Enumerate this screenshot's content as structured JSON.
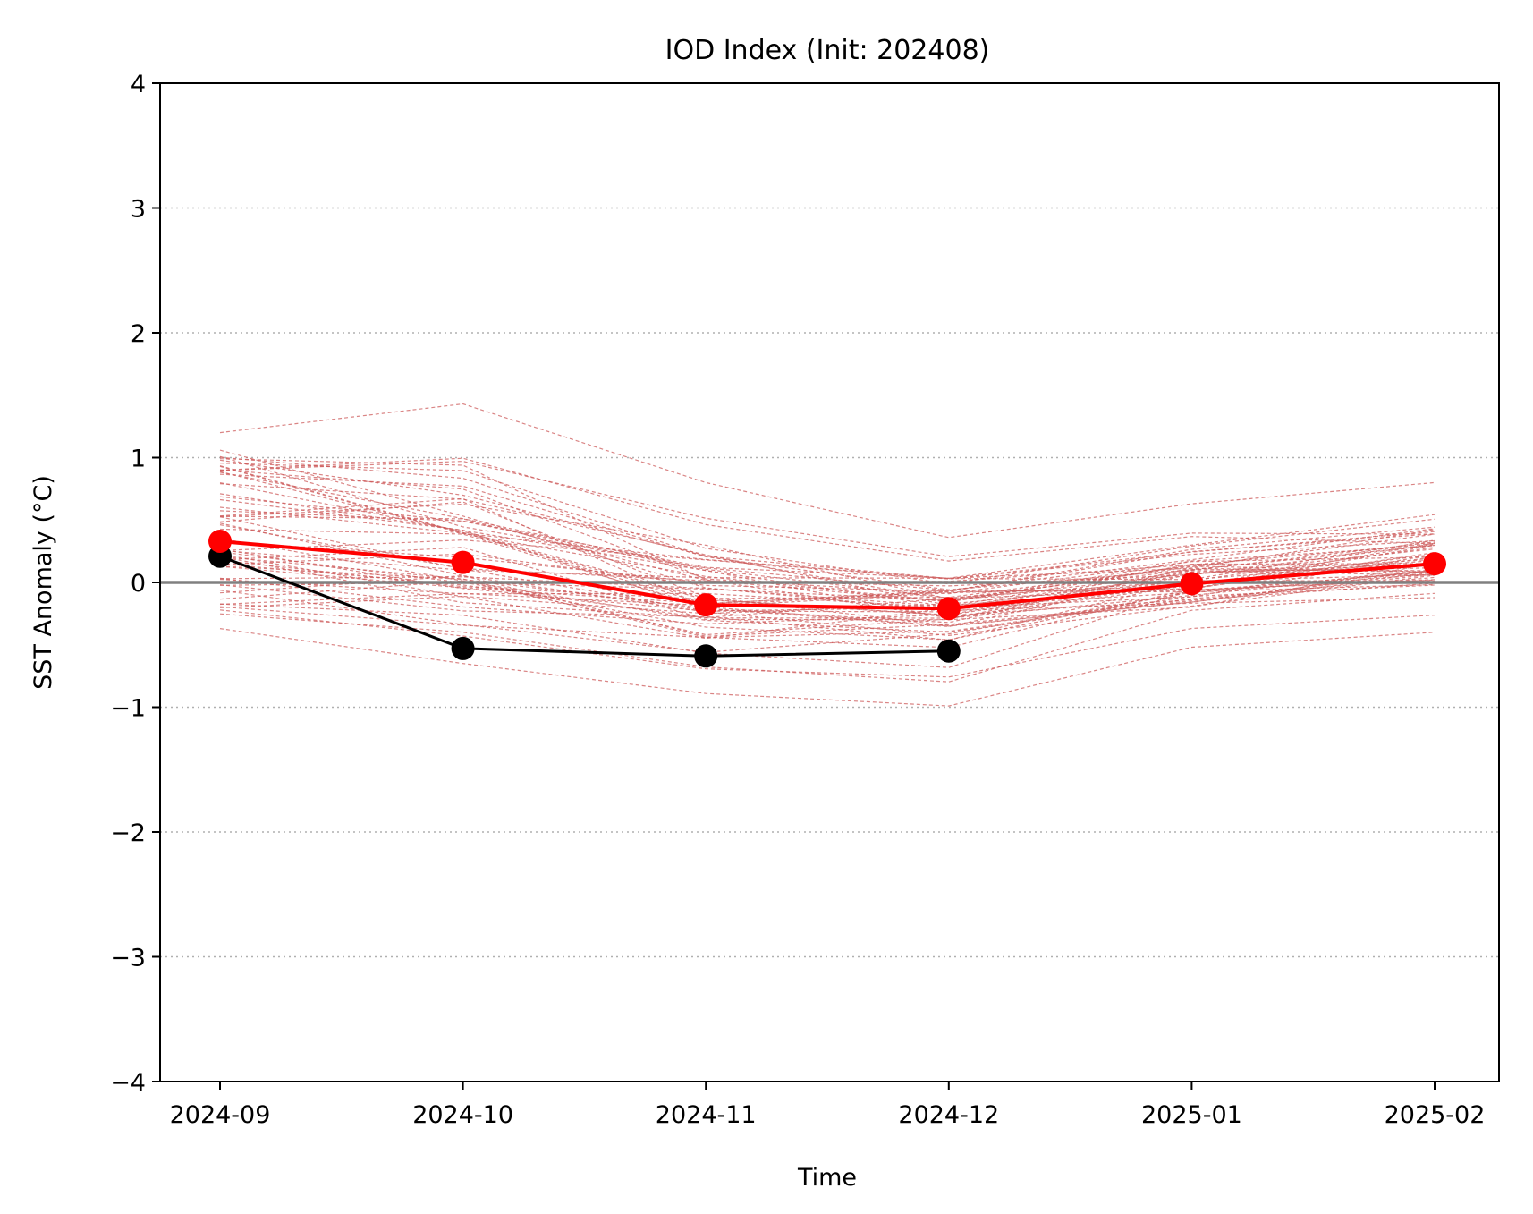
{
  "chart_data": {
    "type": "line",
    "title": "IOD Index (Init: 202408)",
    "xlabel": "Time",
    "ylabel": "SST Anomaly (°C)",
    "ylim": [
      -4,
      4
    ],
    "yticks": [
      -4,
      -3,
      -2,
      -1,
      0,
      1,
      2,
      3,
      4
    ],
    "categories": [
      "2024-09",
      "2024-10",
      "2024-11",
      "2024-12",
      "2025-01",
      "2025-02"
    ],
    "grid": "horizontal dotted",
    "zero_line": 0,
    "series": [
      {
        "role": "ensemble_mean",
        "color": "#ff0000",
        "values": [
          0.33,
          0.16,
          -0.18,
          -0.21,
          -0.01,
          0.15
        ]
      },
      {
        "role": "observed",
        "color": "#000000",
        "values": [
          0.21,
          -0.53,
          -0.59,
          -0.55,
          null,
          null
        ]
      }
    ],
    "ensemble_members": {
      "color": "#cd5c5c",
      "count": 60,
      "start_range": [
        -0.37,
        1.2
      ],
      "max_values": [
        1.2,
        1.43,
        0.8,
        0.36,
        0.63,
        0.8
      ],
      "min_values": [
        -0.37,
        -0.65,
        -0.89,
        -0.99,
        -0.52,
        -0.4
      ]
    },
    "colors": {
      "mean": "#ff0000",
      "observed": "#000000",
      "members": "#cd5c5c",
      "zero_line": "#808080",
      "grid": "#b0b0b0"
    }
  }
}
